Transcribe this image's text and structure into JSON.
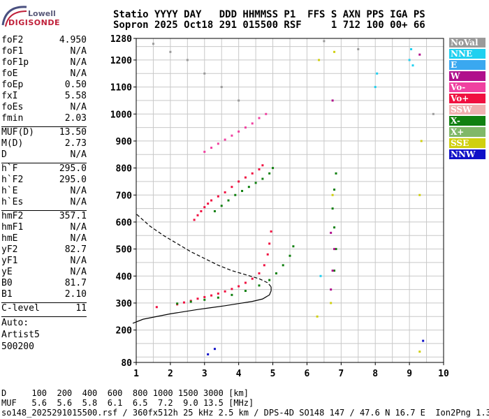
{
  "logo": {
    "line1": "Lowell",
    "line2": "DIGISONDE"
  },
  "header": {
    "labels": "Statio YYYY DAY   DDD HHMMSS P1  FFS S AXN PPS IGA PS",
    "values": "Sopron 2025 Oct18 291 015500 RSF     1 712 100 00+ 66"
  },
  "params": [
    {
      "name": "foF2",
      "value": "4.950"
    },
    {
      "name": "foF1",
      "value": "N/A"
    },
    {
      "name": "foF1p",
      "value": "N/A"
    },
    {
      "name": "foE",
      "value": "N/A"
    },
    {
      "name": "foEp",
      "value": "0.50"
    },
    {
      "name": "fxI",
      "value": "5.58"
    },
    {
      "name": "foEs",
      "value": "N/A"
    },
    {
      "name": "fmin",
      "value": "2.03"
    },
    {
      "sep": true
    },
    {
      "name": "MUF(D)",
      "value": "13.50"
    },
    {
      "name": "M(D)",
      "value": "2.73"
    },
    {
      "name": "D",
      "value": "N/A"
    },
    {
      "sep": true
    },
    {
      "name": "h`F",
      "value": "295.0"
    },
    {
      "name": "h`F2",
      "value": "295.0"
    },
    {
      "name": "h`E",
      "value": "N/A"
    },
    {
      "name": "h`Es",
      "value": "N/A"
    },
    {
      "sep": true
    },
    {
      "name": "hmF2",
      "value": "357.1"
    },
    {
      "name": "hmF1",
      "value": "N/A"
    },
    {
      "name": "hmE",
      "value": "N/A"
    },
    {
      "name": "yF2",
      "value": "82.7"
    },
    {
      "name": "yF1",
      "value": "N/A"
    },
    {
      "name": "yE",
      "value": "N/A"
    },
    {
      "name": "B0",
      "value": "81.7"
    },
    {
      "name": "B1",
      "value": "2.10"
    },
    {
      "sep": true
    },
    {
      "name": "C-level",
      "value": "11"
    },
    {
      "sep": true
    }
  ],
  "auto": [
    "Auto:",
    "Artist5",
    "500200"
  ],
  "legend": [
    {
      "label": "NoVal",
      "color": "#9a9a9a"
    },
    {
      "label": "NNE",
      "color": "#1fd0f0"
    },
    {
      "label": "E",
      "color": "#3aa8f0"
    },
    {
      "label": "W",
      "color": "#b0108c"
    },
    {
      "label": "Vo-",
      "color": "#f040a0"
    },
    {
      "label": "Vo+",
      "color": "#f01040"
    },
    {
      "label": "SSW",
      "color": "#f0b0b0"
    },
    {
      "label": "X-",
      "color": "#108010"
    },
    {
      "label": "X+",
      "color": "#80b868"
    },
    {
      "label": "SSE",
      "color": "#d0d010"
    },
    {
      "label": "NNW",
      "color": "#1010c8"
    }
  ],
  "footer": {
    "line1": "D     100  200  400  600  800 1000 1500 3000 [km]",
    "line2": "MUF   5.6  5.6  5.8  6.1  6.5  7.2  9.0 13.5 [MHz]",
    "line3": "so148_2025291015500.rsf / 360fx512h 25 kHz 2.5 km / DPS-4D SO148 147 / 47.6 N 16.7 E  Ion2Png 1.3.20"
  },
  "chart_data": {
    "type": "scatter",
    "xlim": [
      1,
      10
    ],
    "ylim": [
      80,
      1280
    ],
    "xticks": [
      1,
      2,
      3,
      4,
      5,
      6,
      7,
      8,
      9,
      10
    ],
    "yticks": [
      80,
      200,
      300,
      400,
      500,
      600,
      700,
      800,
      900,
      1000,
      1100,
      1200,
      1280
    ],
    "grid": true,
    "series": [
      {
        "name": "Vo+",
        "color": "#f01040",
        "x": [
          1.6,
          2.2,
          2.4,
          2.6,
          2.8,
          3.0,
          3.2,
          3.4,
          3.6,
          3.8,
          4.0,
          4.2,
          4.4,
          4.6,
          4.75,
          4.85,
          4.9,
          4.95
        ],
        "y": [
          285,
          295,
          302,
          308,
          316,
          322,
          328,
          335,
          343,
          352,
          362,
          375,
          390,
          410,
          440,
          480,
          520,
          565
        ]
      },
      {
        "name": "Vo+",
        "color": "#f01040",
        "x": [
          2.7,
          2.8,
          2.9,
          3.0,
          3.1,
          3.2,
          3.4,
          3.6,
          3.8,
          4.0,
          4.2,
          4.4,
          4.6,
          4.7
        ],
        "y": [
          608,
          625,
          640,
          655,
          668,
          680,
          695,
          710,
          730,
          750,
          765,
          780,
          795,
          810
        ]
      },
      {
        "name": "Vo-",
        "color": "#f040a0",
        "x": [
          3.0,
          3.2,
          3.4,
          3.6,
          3.8,
          4.0,
          4.2,
          4.4,
          4.6,
          4.8
        ],
        "y": [
          860,
          875,
          890,
          905,
          920,
          935,
          950,
          965,
          985,
          1000
        ]
      },
      {
        "name": "X-",
        "color": "#108010",
        "x": [
          2.2,
          2.6,
          3.0,
          3.4,
          3.8,
          4.2,
          4.6,
          4.9,
          5.1,
          5.3,
          5.5,
          5.6
        ],
        "y": [
          298,
          305,
          312,
          320,
          330,
          345,
          365,
          385,
          410,
          440,
          475,
          510
        ]
      },
      {
        "name": "X-",
        "color": "#108010",
        "x": [
          3.3,
          3.5,
          3.7,
          3.9,
          4.1,
          4.3,
          4.5,
          4.7,
          4.9,
          5.0
        ],
        "y": [
          640,
          660,
          680,
          700,
          715,
          730,
          745,
          760,
          780,
          800
        ]
      },
      {
        "name": "X-",
        "color": "#108010",
        "x": [
          6.8,
          6.85,
          6.8,
          6.75,
          6.8,
          6.85
        ],
        "y": [
          420,
          500,
          580,
          650,
          720,
          780
        ]
      },
      {
        "name": "W",
        "color": "#b0108c",
        "x": [
          6.7,
          6.75,
          6.8,
          6.7,
          6.75,
          9.3
        ],
        "y": [
          350,
          420,
          500,
          560,
          1050,
          1220
        ]
      },
      {
        "name": "SSE",
        "color": "#d0d010",
        "x": [
          6.3,
          6.35,
          6.7,
          6.75,
          6.8,
          9.3,
          9.35,
          9.3
        ],
        "y": [
          250,
          1200,
          300,
          700,
          1230,
          700,
          900,
          120
        ]
      },
      {
        "name": "NNE",
        "color": "#1fd0f0",
        "x": [
          6.4,
          8.0,
          8.05,
          9.0,
          9.05,
          9.1
        ],
        "y": [
          400,
          1100,
          1150,
          1200,
          1240,
          1180
        ]
      },
      {
        "name": "NNW",
        "color": "#1010c8",
        "x": [
          3.1,
          3.3,
          9.4
        ],
        "y": [
          110,
          130,
          160
        ]
      },
      {
        "name": "NoVal",
        "color": "#9a9a9a",
        "x": [
          1.5,
          2.0,
          2.5,
          3.0,
          3.5,
          4.0,
          6.5,
          7.5,
          9.7
        ],
        "y": [
          1260,
          1230,
          1200,
          1150,
          1100,
          1050,
          1270,
          1240,
          1000
        ]
      }
    ],
    "profile": {
      "x": [
        0.9,
        1.2,
        1.6,
        2.0,
        2.4,
        2.8,
        3.2,
        3.6,
        4.0,
        4.4,
        4.7,
        4.9,
        4.95,
        4.95,
        4.85,
        4.6,
        4.2,
        3.8,
        3.4,
        3.0,
        2.6,
        2.2,
        1.8,
        1.4,
        1.0
      ],
      "y": [
        225,
        240,
        250,
        260,
        268,
        276,
        283,
        290,
        298,
        306,
        315,
        330,
        345,
        360,
        375,
        390,
        405,
        420,
        440,
        465,
        490,
        520,
        550,
        585,
        630
      ]
    }
  }
}
